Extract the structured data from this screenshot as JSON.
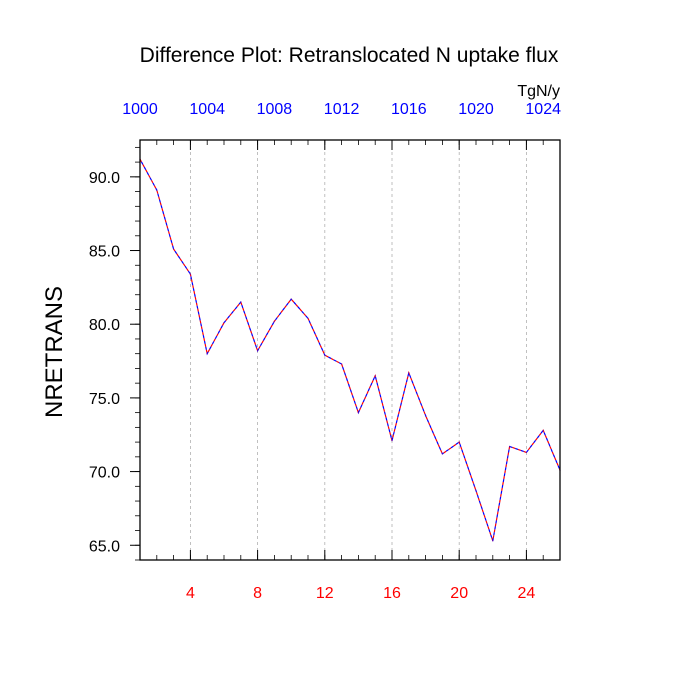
{
  "chart_data": {
    "type": "line",
    "title": "Difference Plot: Retranslocated N uptake flux",
    "units_label": "TgN/y",
    "ylabel": "NRETRANS",
    "xlabel": "",
    "ylim": [
      64,
      92.5
    ],
    "grid": "vertical dashed lines at bottom-axis ticks",
    "legend": "none",
    "bottom_axis": {
      "range": [
        1,
        26
      ],
      "ticks": [
        4,
        8,
        12,
        16,
        20,
        24
      ],
      "labels": [
        "4",
        "8",
        "12",
        "16",
        "20",
        "24"
      ],
      "color": "#ff0000"
    },
    "top_axis": {
      "ticks": [
        1,
        5,
        9,
        13,
        17,
        21,
        25
      ],
      "labels": [
        "1000",
        "1004",
        "1008",
        "1012",
        "1016",
        "1020",
        "1024"
      ],
      "color": "#0000ff"
    },
    "left_axis": {
      "ticks": [
        65,
        70,
        75,
        80,
        85,
        90
      ],
      "labels": [
        "65.0",
        "70.0",
        "75.0",
        "80.0",
        "85.0",
        "90.0"
      ]
    },
    "series": [
      {
        "colors": [
          "#ff0000",
          "#0000ff"
        ],
        "x": [
          1,
          2,
          3,
          4,
          5,
          6,
          7,
          8,
          9,
          10,
          11,
          12,
          13,
          14,
          15,
          16,
          17,
          18,
          19,
          20,
          21,
          22,
          23,
          24,
          25,
          26
        ],
        "values": [
          91.2,
          89.1,
          85.1,
          83.4,
          78.0,
          80.1,
          81.5,
          78.2,
          80.2,
          81.7,
          80.4,
          77.9,
          77.3,
          74.0,
          76.5,
          72.1,
          76.7,
          73.8,
          71.2,
          72.0,
          68.7,
          65.3,
          71.7,
          71.3,
          72.8,
          70.1
        ]
      }
    ]
  }
}
